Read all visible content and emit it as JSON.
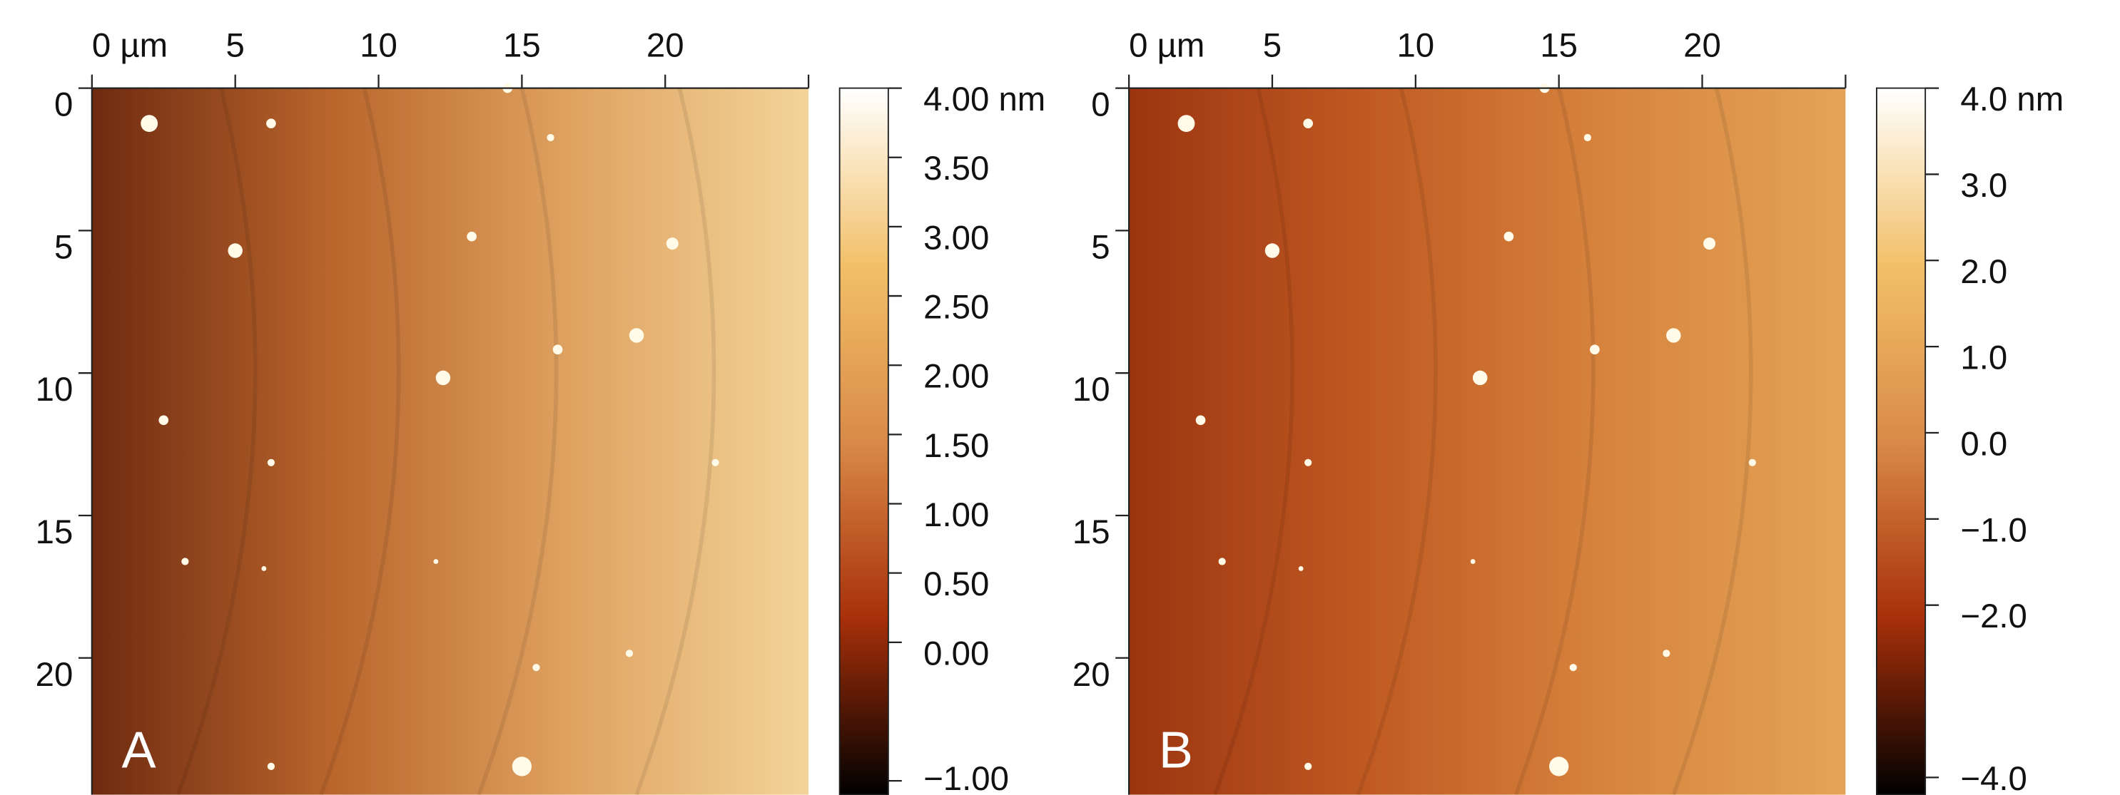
{
  "chart_data": [
    {
      "type": "image",
      "panel_label": "A",
      "xlim": [
        0,
        25
      ],
      "xticks": [
        {
          "value": 0,
          "label": "0 µm"
        },
        5,
        10,
        15,
        20
      ],
      "ylim": [
        0,
        24.8
      ],
      "yticks": [
        0,
        5,
        10,
        15,
        20
      ],
      "colorbar_lim": [
        -1.1,
        4.0
      ],
      "colorbar_ticks": [
        {
          "value": 4.0,
          "label": "4.00 nm"
        },
        {
          "value": 3.5,
          "label": "3.50"
        },
        {
          "value": 3.0,
          "label": "3.00"
        },
        {
          "value": 2.5,
          "label": "2.50"
        },
        {
          "value": 2.0,
          "label": "2.00"
        },
        {
          "value": 1.5,
          "label": "1.50"
        },
        {
          "value": 1.0,
          "label": "1.00"
        },
        {
          "value": 0.5,
          "label": "0.50"
        },
        {
          "value": 0.0,
          "label": "0.00"
        },
        {
          "value": -1.0,
          "label": "−1.00"
        }
      ],
      "colorbar_colors": [
        "#000000",
        "#a8300a",
        "#d98a48",
        "#f2c068",
        "#ffffff"
      ],
      "image_colors": [
        "#6e2a10",
        "#b9652c",
        "#dfa260",
        "#f3d49a"
      ]
    },
    {
      "type": "image",
      "panel_label": "B",
      "xlim": [
        0,
        25
      ],
      "xticks": [
        {
          "value": 0,
          "label": "0 µm"
        },
        5,
        10,
        15,
        20
      ],
      "ylim": [
        0,
        24.8
      ],
      "yticks": [
        0,
        5,
        10,
        15,
        20
      ],
      "colorbar_lim": [
        -4.2,
        4.0
      ],
      "colorbar_ticks": [
        {
          "value": 4.0,
          "label": "4.0 nm"
        },
        {
          "value": 3.0,
          "label": "3.0"
        },
        {
          "value": 2.0,
          "label": "2.0"
        },
        {
          "value": 1.0,
          "label": "1.0"
        },
        {
          "value": 0.0,
          "label": "0.0"
        },
        {
          "value": -1.0,
          "label": "−1.0"
        },
        {
          "value": -2.0,
          "label": "−2.0"
        },
        {
          "value": -4.0,
          "label": "−4.0"
        }
      ],
      "colorbar_colors": [
        "#000000",
        "#a8300a",
        "#d98a48",
        "#f2c068",
        "#ffffff"
      ],
      "image_colors": [
        "#9c3410",
        "#c05a22",
        "#d7843e",
        "#e4a458"
      ]
    }
  ]
}
